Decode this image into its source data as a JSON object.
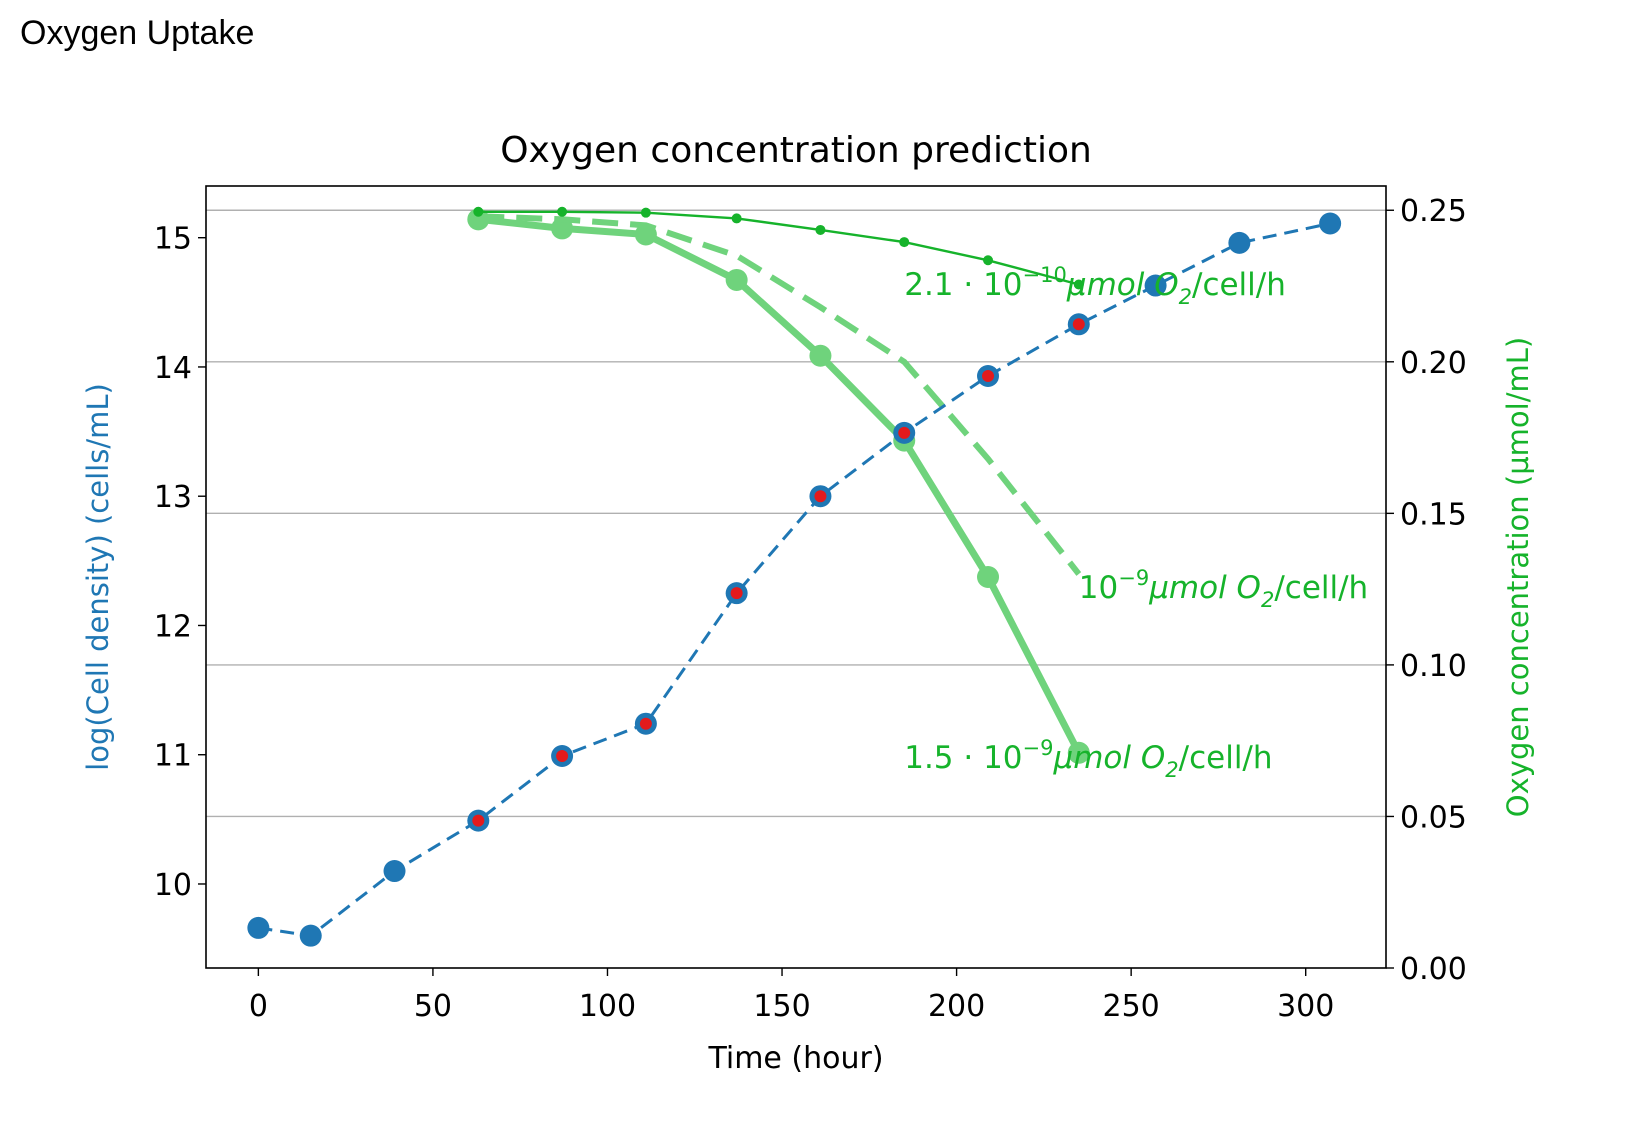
{
  "page": {
    "heading": "Oxygen Uptake"
  },
  "colors": {
    "blue": "#1f77b4",
    "red": "#e31a1c",
    "green": "#16b32b",
    "green_light": "#6fd37c",
    "grid": "#b0b0b0",
    "axis_left_label": "#1f77b4",
    "axis_right_label": "#16b32b"
  },
  "chart_data": {
    "type": "line",
    "title": "Oxygen concentration prediction",
    "xlabel": "Time (hour)",
    "ylabel_left": "log(Cell density) (cells/mL)",
    "ylabel_right": "Oxygen concentration (µmol/mL)",
    "xlim": [
      -15,
      323
    ],
    "ylim_left": [
      9.35,
      15.4
    ],
    "ylim_right": [
      0.0,
      0.258
    ],
    "x_ticks": [
      0,
      50,
      100,
      150,
      200,
      250,
      300
    ],
    "x_tick_labels": [
      "0",
      "50",
      "100",
      "150",
      "200",
      "250",
      "300"
    ],
    "y_left_ticks": [
      10,
      11,
      12,
      13,
      14,
      15
    ],
    "y_left_tick_labels": [
      "10",
      "11",
      "12",
      "13",
      "14",
      "15"
    ],
    "y_right_ticks": [
      0.0,
      0.05,
      0.1,
      0.15,
      0.2,
      0.25
    ],
    "y_right_tick_labels": [
      "0.00",
      "0.05",
      "0.10",
      "0.15",
      "0.20",
      "0.25"
    ],
    "grid": "horizontal lines at right-axis ticks",
    "series": [
      {
        "axis": "left",
        "style": "dashed-markers",
        "color": "blue",
        "x": [
          0,
          15,
          39,
          63,
          87,
          111,
          137,
          161,
          185,
          209,
          235,
          257,
          281,
          307
        ],
        "y": [
          9.66,
          9.6,
          10.1,
          10.49,
          10.99,
          11.24,
          12.25,
          13.0,
          13.49,
          13.93,
          14.33,
          14.63,
          14.96,
          15.11
        ],
        "highlight_red": [
          false,
          false,
          false,
          true,
          true,
          true,
          true,
          true,
          true,
          true,
          true,
          false,
          false,
          false
        ]
      },
      {
        "axis": "right",
        "style": "thin-solid-small-markers",
        "color": "green",
        "x": [
          63,
          87,
          111,
          137,
          161,
          185,
          209,
          235
        ],
        "y": [
          0.2495,
          0.2495,
          0.2492,
          0.2473,
          0.2435,
          0.2395,
          0.2335,
          0.2255
        ]
      },
      {
        "axis": "right",
        "style": "thick-dashed",
        "color": "green_light",
        "x": [
          63,
          87,
          111,
          137,
          161,
          185,
          209,
          235
        ],
        "y": [
          0.248,
          0.247,
          0.245,
          0.235,
          0.218,
          0.2,
          0.168,
          0.13
        ]
      },
      {
        "axis": "right",
        "style": "thick-solid-markers",
        "color": "green_light",
        "x": [
          63,
          87,
          111,
          137,
          161,
          185,
          209,
          235
        ],
        "y": [
          0.247,
          0.244,
          0.242,
          0.227,
          0.202,
          0.174,
          0.129,
          0.071
        ]
      }
    ],
    "annotations": [
      {
        "id": "a1",
        "pre": "2.1 · 10",
        "sup": "−10",
        "mid": "μmol O",
        "sub": "2",
        "post": "/cell/h",
        "x": 185,
        "y": 0.222
      },
      {
        "id": "a2",
        "pre": "10",
        "sup": "−9",
        "mid": "μmol O",
        "sub": "2",
        "post": "/cell/h",
        "x": 235,
        "y": 0.122
      },
      {
        "id": "a3",
        "pre": "1.5 · 10",
        "sup": "−9",
        "mid": "μmol O",
        "sub": "2",
        "post": "/cell/h",
        "x": 185,
        "y": 0.066
      }
    ]
  }
}
